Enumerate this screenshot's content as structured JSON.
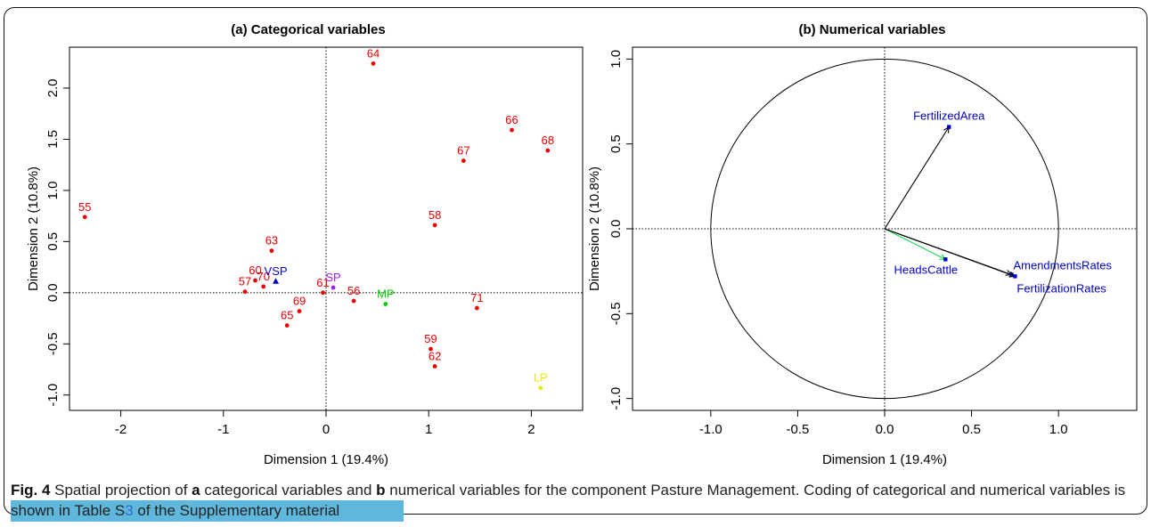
{
  "caption": {
    "fig_label": "Fig. 4",
    "part1": " Spatial projection of ",
    "a": "a",
    "part2": " categorical variables and ",
    "b": "b",
    "part3": " numerical variables for the component Pasture Management. Coding of categorical and numerical variables is shown in Table S",
    "link_digit": "3",
    "part4": " of the Supplementary material"
  },
  "colors": {
    "red": "#ee0000",
    "blue": "#0000cc",
    "purple": "#a020f0",
    "green": "#00cc00",
    "yellow": "#e8e800",
    "black": "#000000",
    "arrow_green": "#00dd44"
  },
  "chart_data": [
    {
      "type": "scatter",
      "title": "(a) Categorical variables",
      "xlabel": "Dimension 1 (19.4%)",
      "ylabel": "Dimension 2 (10.8%)",
      "xlim": [
        -2.5,
        2.5
      ],
      "ylim": [
        -1.15,
        2.4
      ],
      "xticks": [
        -2,
        -1,
        0,
        1,
        2
      ],
      "yticks": [
        -1.0,
        -0.5,
        0.0,
        0.5,
        1.0,
        1.5,
        2.0
      ],
      "ytick_labels": [
        "-1.0",
        "-0.5",
        "0.0",
        "0.5",
        "1.0",
        "1.5",
        "2.0"
      ],
      "xtick_labels": [
        "-2",
        "-1",
        "0",
        "1",
        "2"
      ],
      "grid": false,
      "reference_lines": "dotted lines at x=0 and y=0",
      "points": [
        {
          "label": "55",
          "x": -2.35,
          "y": 0.74,
          "color": "red",
          "marker": "dot"
        },
        {
          "label": "56",
          "x": 0.27,
          "y": -0.08,
          "color": "red",
          "marker": "dot"
        },
        {
          "label": "57",
          "x": -0.79,
          "y": 0.01,
          "color": "red",
          "marker": "dot"
        },
        {
          "label": "58",
          "x": 1.06,
          "y": 0.66,
          "color": "red",
          "marker": "dot"
        },
        {
          "label": "59",
          "x": 1.02,
          "y": -0.55,
          "color": "red",
          "marker": "dot"
        },
        {
          "label": "60",
          "x": -0.69,
          "y": 0.12,
          "color": "red",
          "marker": "dot"
        },
        {
          "label": "61",
          "x": -0.03,
          "y": 0.0,
          "color": "red",
          "marker": "dot"
        },
        {
          "label": "62",
          "x": 1.06,
          "y": -0.72,
          "color": "red",
          "marker": "dot"
        },
        {
          "label": "63",
          "x": -0.53,
          "y": 0.41,
          "color": "red",
          "marker": "dot"
        },
        {
          "label": "64",
          "x": 0.46,
          "y": 2.24,
          "color": "red",
          "marker": "dot"
        },
        {
          "label": "65",
          "x": -0.38,
          "y": -0.32,
          "color": "red",
          "marker": "dot"
        },
        {
          "label": "66",
          "x": 1.81,
          "y": 1.59,
          "color": "red",
          "marker": "dot"
        },
        {
          "label": "67",
          "x": 1.34,
          "y": 1.29,
          "color": "red",
          "marker": "dot"
        },
        {
          "label": "68",
          "x": 2.16,
          "y": 1.39,
          "color": "red",
          "marker": "dot"
        },
        {
          "label": "69",
          "x": -0.26,
          "y": -0.18,
          "color": "red",
          "marker": "dot"
        },
        {
          "label": "70",
          "x": -0.61,
          "y": 0.06,
          "color": "red",
          "marker": "dot"
        },
        {
          "label": "71",
          "x": 1.47,
          "y": -0.15,
          "color": "red",
          "marker": "dot"
        },
        {
          "label": "VSP",
          "x": -0.49,
          "y": 0.11,
          "color": "blue",
          "marker": "triangle"
        },
        {
          "label": "SP",
          "x": 0.07,
          "y": 0.05,
          "color": "purple",
          "marker": "dot"
        },
        {
          "label": "MP",
          "x": 0.58,
          "y": -0.11,
          "color": "green",
          "marker": "dot"
        },
        {
          "label": "LP",
          "x": 2.09,
          "y": -0.93,
          "color": "yellow",
          "marker": "dot"
        }
      ]
    },
    {
      "type": "scatter",
      "title": "(b) Numerical variables",
      "xlabel": "Dimension 1 (19.4%)",
      "ylabel": "Dimension 2 (10.8%)",
      "xlim": [
        -1.45,
        1.45
      ],
      "ylim": [
        -1.07,
        1.07
      ],
      "xticks": [
        -1.0,
        -0.5,
        0.0,
        0.5,
        1.0
      ],
      "xtick_labels": [
        "-1.0",
        "-0.5",
        "0.0",
        "0.5",
        "1.0"
      ],
      "yticks": [
        -1.0,
        -0.5,
        0.0,
        0.5,
        1.0
      ],
      "ytick_labels": [
        "-1.0",
        "-0.5",
        "0.0",
        "0.5",
        "1.0"
      ],
      "grid": false,
      "unit_circle": true,
      "reference_lines": "dotted lines at x=0 and y=0",
      "arrows": [
        {
          "label": "FertilizedArea",
          "x": 0.37,
          "y": 0.6,
          "color": "black"
        },
        {
          "label": "HeadsCattle",
          "x": 0.35,
          "y": -0.18,
          "color": "arrow_green"
        },
        {
          "label": "AmendmentsRates",
          "x": 0.73,
          "y": -0.27,
          "color": "black"
        },
        {
          "label": "FertilizationRates",
          "x": 0.75,
          "y": -0.28,
          "color": "black"
        }
      ]
    }
  ]
}
